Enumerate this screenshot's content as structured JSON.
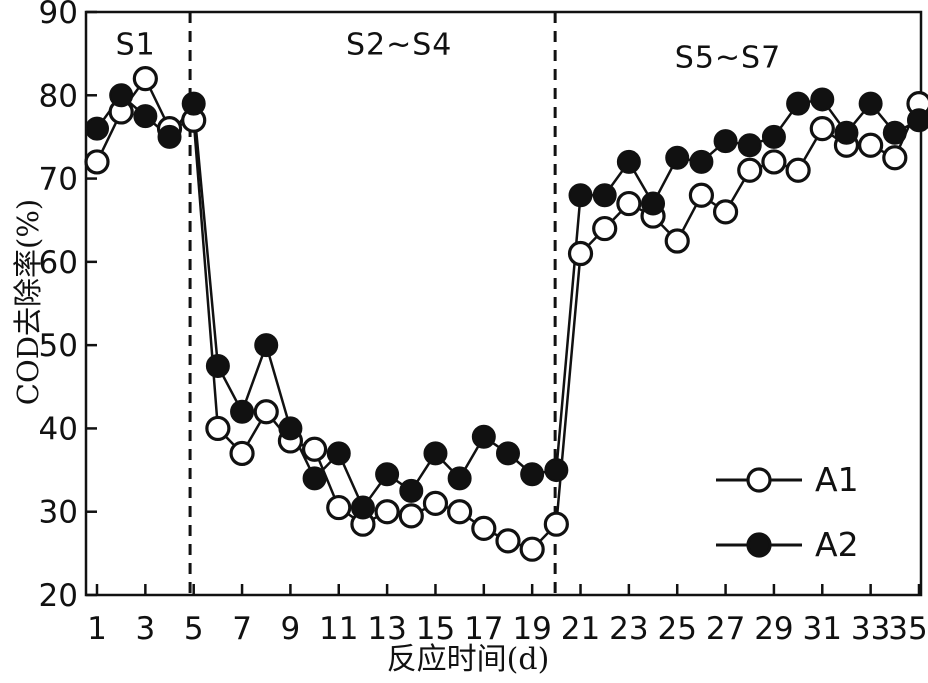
{
  "figure": {
    "background": "#ffffff",
    "ink_color": "#111111",
    "y_axis": {
      "label": "COD去除率(%)",
      "min": 20,
      "max": 90,
      "ticks": [
        20,
        30,
        40,
        50,
        60,
        70,
        80,
        90
      ]
    },
    "x_axis": {
      "label": "反应时间(d)",
      "min": 1,
      "max": 35,
      "ticks": [
        1,
        3,
        5,
        7,
        9,
        11,
        13,
        15,
        17,
        19,
        21,
        23,
        25,
        27,
        29,
        31,
        33,
        35
      ]
    },
    "dashed_lines_at_days": [
      4.85,
      19.95
    ],
    "legend": [
      {
        "label": "A1",
        "marker": "open-circle"
      },
      {
        "label": "A2",
        "marker": "filled-circle"
      }
    ]
  },
  "chart_data": {
    "type": "line",
    "title": "",
    "xlabel": "反应时间(d)",
    "ylabel": "COD去除率(%)",
    "xlim": [
      1,
      35
    ],
    "ylim": [
      20,
      90
    ],
    "grid": false,
    "legend_position": "lower-right",
    "x": [
      1,
      2,
      3,
      4,
      5,
      6,
      7,
      8,
      9,
      10,
      11,
      12,
      13,
      14,
      15,
      16,
      17,
      18,
      19,
      20,
      21,
      22,
      23,
      24,
      25,
      26,
      27,
      28,
      29,
      30,
      31,
      32,
      33,
      34,
      35
    ],
    "series": [
      {
        "name": "A1",
        "marker": "open-circle",
        "values": [
          72,
          78,
          82,
          76,
          77,
          40,
          37,
          42,
          38.5,
          37.5,
          30.5,
          28.5,
          30,
          29.5,
          31,
          30,
          28,
          26.5,
          25.5,
          28.5,
          61,
          64,
          67,
          65.5,
          62.5,
          68,
          66,
          71,
          72,
          71,
          76,
          74,
          74,
          72.5,
          79
        ]
      },
      {
        "name": "A2",
        "marker": "filled-circle",
        "values": [
          76,
          80,
          77.5,
          75,
          79,
          47.5,
          42,
          50,
          40,
          34,
          37,
          30.5,
          34.5,
          32.5,
          37,
          34,
          39,
          37,
          34.5,
          35,
          68,
          68,
          72,
          67,
          72.5,
          72,
          74.5,
          74,
          75,
          79,
          79.5,
          75.5,
          79,
          75.5,
          77
        ]
      }
    ],
    "annotations": [
      {
        "text": "S1",
        "day": 2.6,
        "value": 86
      },
      {
        "text": "S2~S4",
        "day": 13.5,
        "value": 86
      },
      {
        "text": "S5~S7",
        "day": 27.1,
        "value": 84.5
      }
    ]
  }
}
